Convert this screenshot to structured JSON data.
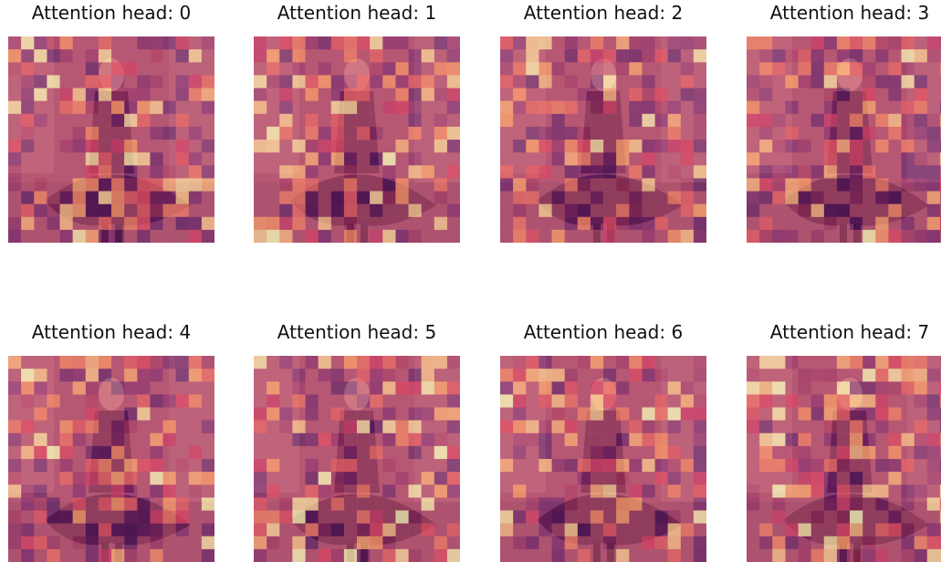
{
  "chart_data": [
    {
      "type": "heatmap",
      "title": "Attention head: 0"
    },
    {
      "type": "heatmap",
      "title": "Attention head: 1"
    },
    {
      "type": "heatmap",
      "title": "Attention head: 2"
    },
    {
      "type": "heatmap",
      "title": "Attention head: 3"
    },
    {
      "type": "heatmap",
      "title": "Attention head: 4"
    },
    {
      "type": "heatmap",
      "title": "Attention head: 5"
    },
    {
      "type": "heatmap",
      "title": "Attention head: 6"
    },
    {
      "type": "heatmap",
      "title": "Attention head: 7"
    }
  ],
  "colors": {
    "overlay_base": "#c65b7c",
    "colormap": [
      "#000004",
      "#3b0f70",
      "#8c2981",
      "#de4968",
      "#fe9f6d",
      "#fcfdbf"
    ]
  }
}
